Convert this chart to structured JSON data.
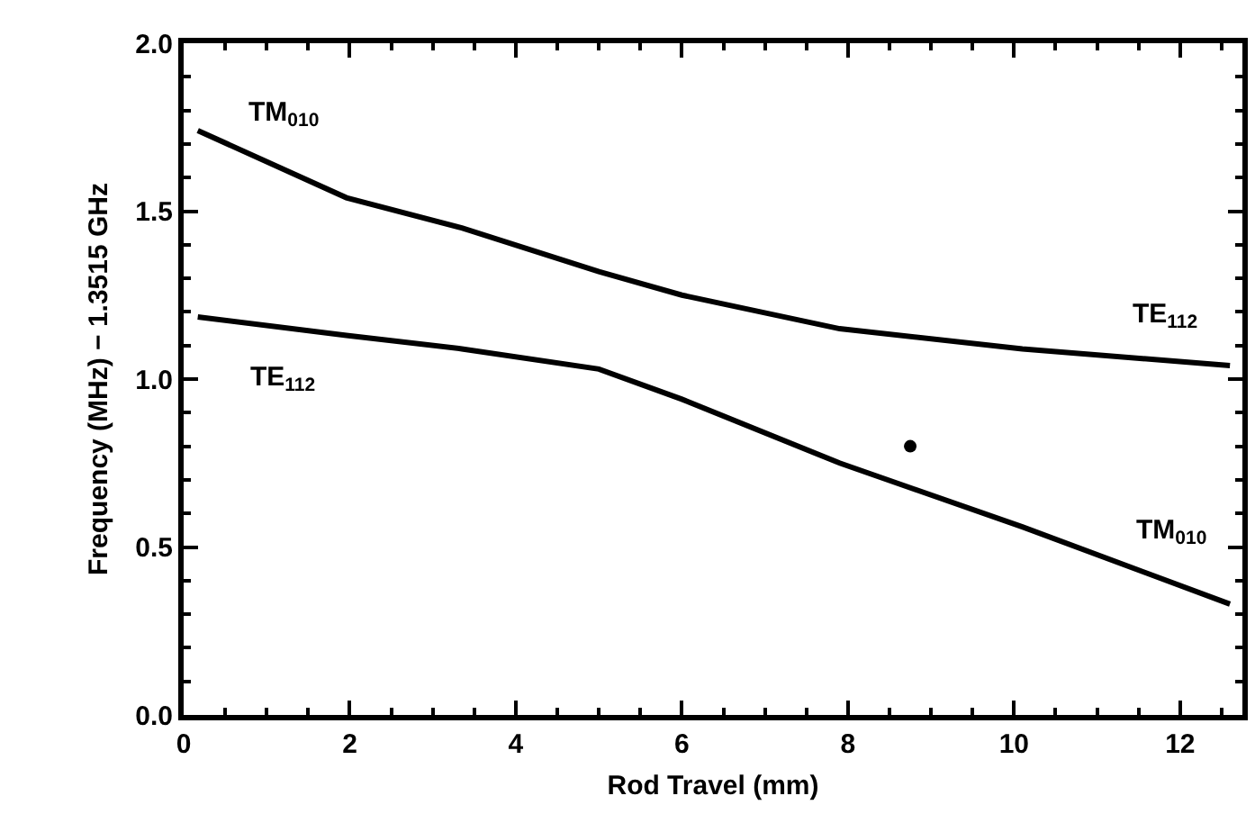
{
  "chart_data": {
    "type": "line",
    "xlabel": "Rod Travel (mm)",
    "ylabel": "Frequency (MHz) − 1.3515 GHz",
    "xlim": [
      0,
      12.75
    ],
    "ylim": [
      0,
      2.0
    ],
    "xticks": [
      0,
      2,
      4,
      6,
      8,
      10,
      12
    ],
    "yticks": [
      {
        "value": 0,
        "label": "0.0"
      },
      0.5,
      {
        "value": 1,
        "label": "1.0"
      },
      1.5,
      {
        "value": 2,
        "label": "2.0"
      }
    ],
    "marker": "none",
    "line_style": "solid",
    "series": [
      {
        "color": "#000000",
        "x": [
          0.17,
          1.96,
          3.35,
          5.0,
          6.0,
          7.9,
          10.1,
          12.6
        ],
        "values": [
          1.74,
          1.54,
          1.45,
          1.32,
          1.25,
          1.15,
          1.09,
          1.04
        ]
      },
      {
        "color": "#000000",
        "x": [
          0.17,
          1.96,
          3.35,
          5.0,
          6.0,
          7.9,
          10.1,
          12.6
        ],
        "values": [
          1.185,
          1.13,
          1.09,
          1.03,
          0.94,
          0.75,
          0.56,
          0.33
        ]
      },
      {
        "type": "scatter",
        "marker": "circle",
        "color": "#000000",
        "x": [
          8.75
        ],
        "values": [
          0.8
        ]
      }
    ],
    "annotations": [
      "TM$_{010}$",
      "TE$_{112}$",
      "TE$_{112}$",
      "TM$_{010}$"
    ]
  }
}
